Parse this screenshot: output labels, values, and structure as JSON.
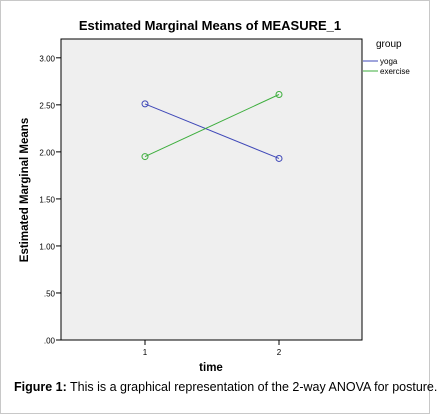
{
  "chart_data": {
    "type": "line",
    "title": "Estimated Marginal Means of MEASURE_1",
    "xlabel": "time",
    "ylabel": "Estimated Marginal Means",
    "categories": [
      "1",
      "2"
    ],
    "ylim": [
      0.0,
      3.2
    ],
    "yticks": [
      0.0,
      0.5,
      1.0,
      1.5,
      2.0,
      2.5,
      3.0
    ],
    "ytick_labels": [
      ".00",
      ".50",
      "1.00",
      "1.50",
      "2.00",
      "2.50",
      "3.00"
    ],
    "legend_title": "group",
    "legend_position": "top-right, outside plot",
    "grid": false,
    "plot_background": "#efefef",
    "series": [
      {
        "name": "yoga",
        "values": [
          2.51,
          1.93
        ],
        "color": "#3f48b8",
        "marker": "circle"
      },
      {
        "name": "exercise",
        "values": [
          1.95,
          2.61
        ],
        "color": "#3dae3d",
        "marker": "circle"
      }
    ]
  },
  "caption": {
    "label": "Figure 1:",
    "text": " This is a graphical representation of the 2-way ANOVA for posture."
  }
}
